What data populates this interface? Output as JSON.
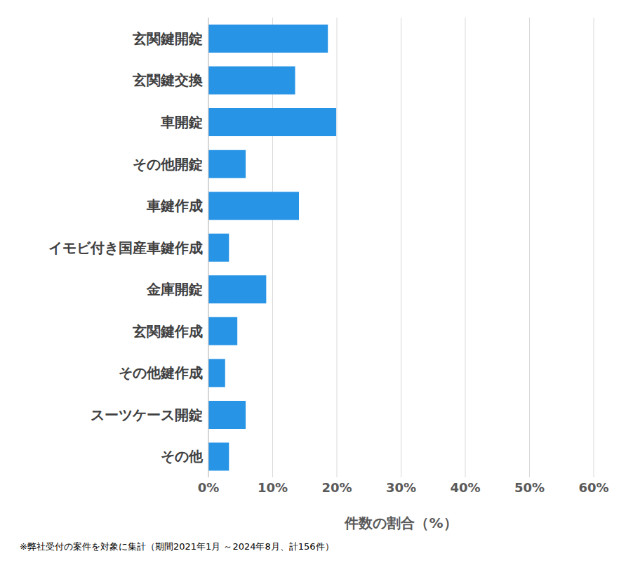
{
  "chart_data": {
    "type": "bar",
    "orientation": "horizontal",
    "categories": [
      "玄関鍵開錠",
      "玄関鍵交換",
      "車開錠",
      "その他開錠",
      "車鍵作成",
      "イモビ付き国産車鍵作成",
      "金庫開錠",
      "玄関鍵作成",
      "その他鍵作成",
      "スーツケース開錠",
      "その他"
    ],
    "values": [
      18.6,
      13.5,
      19.9,
      5.8,
      14.1,
      3.2,
      9.0,
      4.5,
      2.6,
      5.8,
      3.2
    ],
    "color": "#2894e6",
    "x_label": "件数の割合（%）",
    "xlim": [
      0,
      60
    ],
    "xticks": [
      {
        "value": 0,
        "label": "0%"
      },
      {
        "value": 10,
        "label": "10%"
      },
      {
        "value": 20,
        "label": "20%"
      },
      {
        "value": 30,
        "label": "30%"
      },
      {
        "value": 40,
        "label": "40%"
      },
      {
        "value": 50,
        "label": "50%"
      },
      {
        "value": 60,
        "label": "60%"
      }
    ],
    "grid": true,
    "note": "※弊社受付の案件を対象に集計（期間2021年1月 ～2024年8月、計156件）"
  }
}
